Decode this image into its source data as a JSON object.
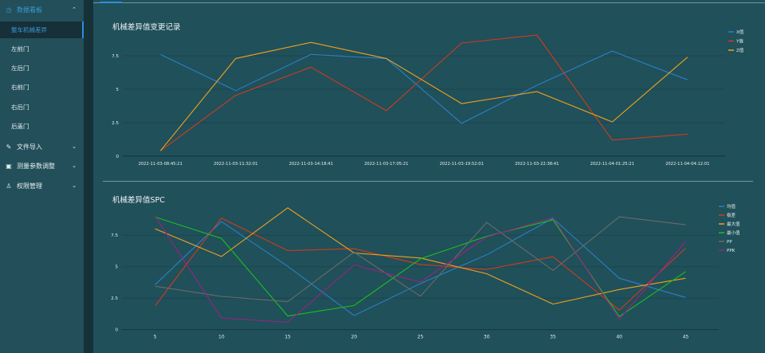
{
  "sidebar": {
    "groups": [
      {
        "label": "数据看板",
        "icon": "dashboard-icon",
        "expanded": true,
        "active": true,
        "items": [
          {
            "label": "整车机械差异",
            "active": true
          },
          {
            "label": "左前门"
          },
          {
            "label": "左后门"
          },
          {
            "label": "右前门"
          },
          {
            "label": "右后门"
          },
          {
            "label": "后盖门"
          }
        ]
      },
      {
        "label": "文件导入",
        "icon": "edit-icon",
        "expanded": false
      },
      {
        "label": "测量参数调整",
        "icon": "form-icon",
        "expanded": false
      },
      {
        "label": "权限管理",
        "icon": "user-icon",
        "expanded": false
      }
    ]
  },
  "colors": {
    "accent": "#2b8fe0",
    "sidebar_bg": "#224f5a",
    "main_bg": "#20505a"
  },
  "chart_data": [
    {
      "type": "line",
      "title": "机械差异值变更记录",
      "categories": [
        "2022-11-03-08:45:21",
        "2022-11-03-11:32:01",
        "2022-11-03-14:18:41",
        "2022-11-03-17:05:21",
        "2022-11-03-19:52:01",
        "2022-11-03-22:38:41",
        "2022-11-04-01:25:21",
        "2022-11-04-04:12:01"
      ],
      "yticks": [
        "0",
        "2.5",
        "5",
        "7.5"
      ],
      "ylim": [
        0,
        9.3
      ],
      "grid": true,
      "legend": "top-right",
      "series": [
        {
          "name": "X值",
          "color": "#2b7fc6",
          "values": [
            7.6,
            4.9,
            7.6,
            7.3,
            2.45,
            5.3,
            7.85,
            5.7
          ]
        },
        {
          "name": "Y值",
          "color": "#d23a1c",
          "values": [
            0.4,
            4.55,
            6.65,
            3.4,
            8.45,
            9.05,
            1.2,
            1.65
          ]
        },
        {
          "name": "Z值",
          "color": "#f0a21c",
          "values": [
            0.4,
            7.3,
            8.5,
            7.3,
            3.93,
            4.82,
            2.56,
            7.4
          ]
        }
      ]
    },
    {
      "type": "line",
      "title": "机械差异值SPC",
      "categories": [
        "5",
        "10",
        "15",
        "20",
        "25",
        "30",
        "35",
        "40",
        "45"
      ],
      "yticks": [
        "0",
        "2.5",
        "5",
        "7.5"
      ],
      "ylim": [
        0,
        9.8
      ],
      "grid": true,
      "legend": "top-right",
      "series": [
        {
          "name": "均值",
          "color": "#2b7fc6",
          "values": [
            3.57,
            8.58,
            5.03,
            1.12,
            3.66,
            5.94,
            8.84,
            4.08,
            2.56
          ]
        },
        {
          "name": "极差",
          "color": "#d23a1c",
          "values": [
            1.88,
            8.86,
            6.28,
            6.43,
            5.18,
            4.78,
            5.79,
            1.56,
            6.47
          ]
        },
        {
          "name": "最大值",
          "color": "#f0a21c",
          "values": [
            8.01,
            5.81,
            9.68,
            6.09,
            5.69,
            4.44,
            2.03,
            3.19,
            4.08
          ]
        },
        {
          "name": "最小值",
          "color": "#19c01e",
          "values": [
            8.94,
            7.25,
            1.08,
            1.92,
            5.62,
            7.42,
            8.73,
            1.04,
            4.61
          ]
        },
        {
          "name": "PP",
          "color": "#6b6b6b",
          "values": [
            3.45,
            2.64,
            2.22,
            6.15,
            2.66,
            8.52,
            4.71,
            8.96,
            8.33
          ]
        },
        {
          "name": "PPK",
          "color": "#9a237f",
          "values": [
            9.0,
            0.93,
            0.59,
            5.14,
            3.78,
            7.36,
            8.9,
            0.82,
            7.0
          ]
        }
      ]
    }
  ]
}
